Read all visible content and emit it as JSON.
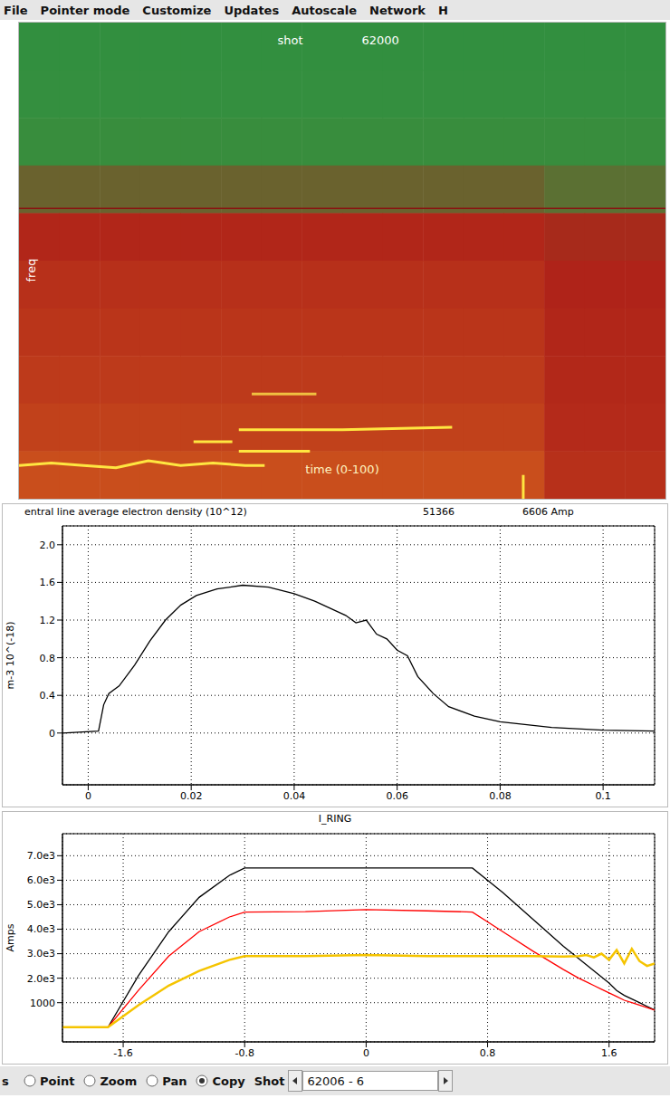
{
  "menu": [
    "File",
    "Pointer mode",
    "Customize",
    "Updates",
    "Autoscale",
    "Network",
    "H"
  ],
  "chart_data": [
    {
      "type": "heatmap",
      "title": "shot",
      "subtitle": "62000",
      "xlabel": "time (0-100)",
      "ylabel": "freq",
      "xlim": [
        0,
        100
      ],
      "ylim": [
        0,
        1
      ],
      "tick_labels": false,
      "color_range": [
        0,
        1
      ],
      "cells": [
        [
          0.2,
          0.2,
          0.2,
          0.2,
          0.2,
          0.2,
          0.2,
          0.2,
          0.2,
          0.2,
          0.2,
          0.2,
          0.2,
          0.2,
          0.2,
          0.2
        ],
        [
          0.22,
          0.22,
          0.22,
          0.22,
          0.22,
          0.22,
          0.22,
          0.22,
          0.22,
          0.22,
          0.22,
          0.22,
          0.22,
          0.22,
          0.22,
          0.22
        ],
        [
          0.26,
          0.26,
          0.26,
          0.26,
          0.26,
          0.26,
          0.26,
          0.26,
          0.26,
          0.26,
          0.26,
          0.26,
          0.26,
          0.26,
          0.26,
          0.26
        ],
        [
          0.36,
          0.36,
          0.36,
          0.36,
          0.36,
          0.36,
          0.36,
          0.36,
          0.36,
          0.36,
          0.36,
          0.36,
          0.36,
          0.34,
          0.34,
          0.34
        ],
        [
          0.46,
          0.46,
          0.46,
          0.46,
          0.46,
          0.46,
          0.46,
          0.46,
          0.46,
          0.46,
          0.46,
          0.46,
          0.46,
          0.44,
          0.44,
          0.44
        ],
        [
          0.5,
          0.5,
          0.5,
          0.5,
          0.5,
          0.5,
          0.5,
          0.5,
          0.5,
          0.5,
          0.5,
          0.5,
          0.5,
          0.45,
          0.45,
          0.45
        ],
        [
          0.52,
          0.52,
          0.52,
          0.52,
          0.52,
          0.52,
          0.52,
          0.52,
          0.52,
          0.52,
          0.52,
          0.52,
          0.52,
          0.46,
          0.46,
          0.46
        ],
        [
          0.54,
          0.54,
          0.54,
          0.54,
          0.54,
          0.54,
          0.54,
          0.54,
          0.54,
          0.54,
          0.54,
          0.54,
          0.54,
          0.47,
          0.47,
          0.47
        ],
        [
          0.57,
          0.57,
          0.57,
          0.57,
          0.57,
          0.57,
          0.57,
          0.57,
          0.57,
          0.57,
          0.57,
          0.57,
          0.57,
          0.48,
          0.48,
          0.48
        ],
        [
          0.62,
          0.62,
          0.62,
          0.62,
          0.62,
          0.62,
          0.62,
          0.62,
          0.62,
          0.62,
          0.62,
          0.62,
          0.62,
          0.5,
          0.5,
          0.5
        ]
      ],
      "series": [
        {
          "color": "#8a1010",
          "x": [
            0,
            100
          ],
          "values": [
            0.61,
            0.61
          ]
        },
        {
          "color": "#ffe640",
          "x": [
            0,
            5,
            10,
            15,
            20,
            25,
            30,
            35,
            38
          ],
          "values": [
            0.07,
            0.075,
            0.07,
            0.065,
            0.08,
            0.07,
            0.075,
            0.07,
            0.07
          ]
        },
        {
          "color": "#ffe640",
          "x": [
            27,
            33
          ],
          "values": [
            0.12,
            0.12
          ]
        },
        {
          "color": "#ffe640",
          "x": [
            34,
            50,
            67
          ],
          "values": [
            0.145,
            0.145,
            0.15
          ]
        },
        {
          "color": "#ffe640",
          "x": [
            34,
            45
          ],
          "values": [
            0.1,
            0.1
          ]
        },
        {
          "color": "#f0c040",
          "x": [
            36,
            46
          ],
          "values": [
            0.22,
            0.22
          ]
        },
        {
          "color": "#ffe640",
          "x": [
            78,
            78
          ],
          "values": [
            0,
            0.05
          ]
        }
      ]
    },
    {
      "type": "line",
      "title": "entral line average electron density (10^12)",
      "annotations": [
        "51366",
        "6606 Amp"
      ],
      "ylabel": "m-3 10^(-18)",
      "xlim": [
        -0.005,
        0.11
      ],
      "ylim": [
        -0.55,
        2.2
      ],
      "xticks": [
        0,
        0.02,
        0.04,
        0.06,
        0.08,
        0.1
      ],
      "yticks": [
        0,
        0.4,
        0.8,
        1.2,
        1.6,
        {
          "value": 2,
          "label": "2.0"
        }
      ],
      "grid": true,
      "x": [
        -0.005,
        0.002,
        0.003,
        0.004,
        0.006,
        0.009,
        0.012,
        0.015,
        0.018,
        0.021,
        0.025,
        0.03,
        0.035,
        0.04,
        0.044,
        0.048,
        0.05,
        0.052,
        0.054,
        0.056,
        0.058,
        0.06,
        0.062,
        0.064,
        0.067,
        0.07,
        0.075,
        0.08,
        0.09,
        0.1,
        0.11
      ],
      "series": [
        {
          "color": "#000000",
          "values": [
            0,
            0.02,
            0.3,
            0.42,
            0.5,
            0.72,
            0.98,
            1.2,
            1.36,
            1.46,
            1.53,
            1.57,
            1.55,
            1.48,
            1.4,
            1.3,
            1.25,
            1.17,
            1.2,
            1.05,
            1.0,
            0.88,
            0.82,
            0.6,
            0.42,
            0.28,
            0.18,
            0.12,
            0.06,
            0.03,
            0.02
          ]
        }
      ]
    },
    {
      "type": "line",
      "title": "I_RING",
      "ylabel": "Amps",
      "xlim": [
        -2.0,
        1.9
      ],
      "ylim": [
        -600,
        7900
      ],
      "xticks": [
        -1.6,
        -0.8,
        0,
        0.8,
        1.6
      ],
      "yticks": [
        1000,
        {
          "value": 2000,
          "label": "2.0e3"
        },
        {
          "value": 3000,
          "label": "3.0e3"
        },
        {
          "value": 4000,
          "label": "4.0e3"
        },
        {
          "value": 5000,
          "label": "5.0e3"
        },
        {
          "value": 6000,
          "label": "6.0e3"
        },
        {
          "value": 7000,
          "label": "7.0e3"
        }
      ],
      "grid": true,
      "x": [
        -2.0,
        -1.8,
        -1.7,
        -1.5,
        -1.3,
        -1.1,
        -0.9,
        -0.8,
        -0.4,
        0,
        0.4,
        0.7,
        0.9,
        1.1,
        1.3,
        1.4,
        1.45,
        1.5,
        1.55,
        1.6,
        1.65,
        1.7,
        1.75,
        1.8,
        1.85,
        1.9
      ],
      "series": [
        {
          "color": "#000000",
          "values": [
            null,
            null,
            0,
            2100,
            3900,
            5300,
            6200,
            6500,
            6500,
            6500,
            6500,
            6500,
            5500,
            4400,
            3300,
            2800,
            2550,
            2300,
            2050,
            1800,
            1500,
            1300,
            1150,
            1000,
            850,
            700
          ]
        },
        {
          "color": "#ff0000",
          "values": [
            null,
            null,
            0,
            1500,
            2900,
            3900,
            4500,
            4700,
            4720,
            4800,
            4750,
            4700,
            3900,
            3100,
            2350,
            2000,
            1850,
            1700,
            1550,
            1400,
            1250,
            1100,
            1000,
            900,
            800,
            700
          ]
        },
        {
          "color": "#f5c400",
          "values": [
            0,
            0,
            0,
            900,
            1700,
            2300,
            2750,
            2900,
            2900,
            2950,
            2900,
            2900,
            2900,
            2900,
            2880,
            2900,
            2950,
            2850,
            3000,
            2750,
            3150,
            2600,
            3200,
            2700,
            2500,
            2600
          ]
        }
      ]
    }
  ],
  "toolbar": {
    "text": "s",
    "modes": [
      "Point",
      "Zoom",
      "Pan",
      "Copy"
    ],
    "selected": "Copy",
    "shot_label": "Shot",
    "shot": "62006 - 6"
  }
}
